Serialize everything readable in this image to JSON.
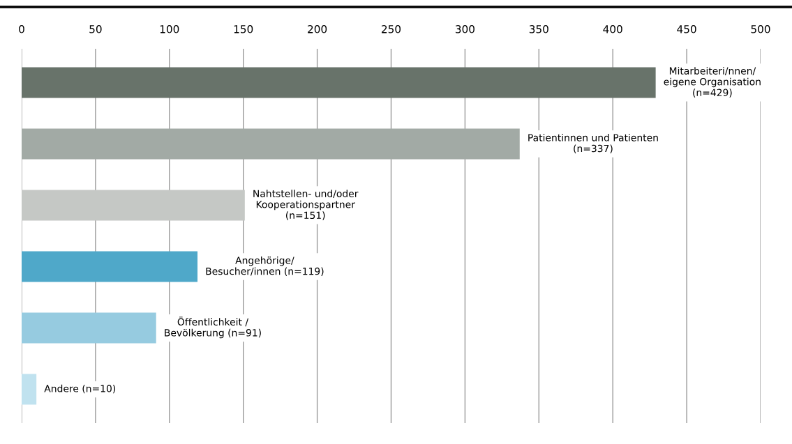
{
  "chart_data": {
    "type": "bar",
    "orientation": "horizontal",
    "categories": [
      "Mitarbeiteri/nnen/\neigene Organisation\n(n=429)",
      "Patientinnen und Patienten\n(n=337)",
      "Nahtstellen- und/oder\nKooperationspartner\n(n=151)",
      "Angehörige/\nBesucher/innen (n=119)",
      "Öffentlichkeit /\nBevölkerung (n=91)",
      "Andere (n=10)"
    ],
    "values": [
      429,
      337,
      151,
      119,
      91,
      10
    ],
    "colors": [
      "#68736a",
      "#a2aaa5",
      "#c5c8c5",
      "#4fa8c9",
      "#96cbe0",
      "#c0e2ef"
    ],
    "xlim": [
      0,
      500
    ],
    "xticks": [
      0,
      50,
      100,
      150,
      200,
      250,
      300,
      350,
      400,
      450,
      500
    ],
    "grid": "x",
    "tick_labels": "x"
  }
}
